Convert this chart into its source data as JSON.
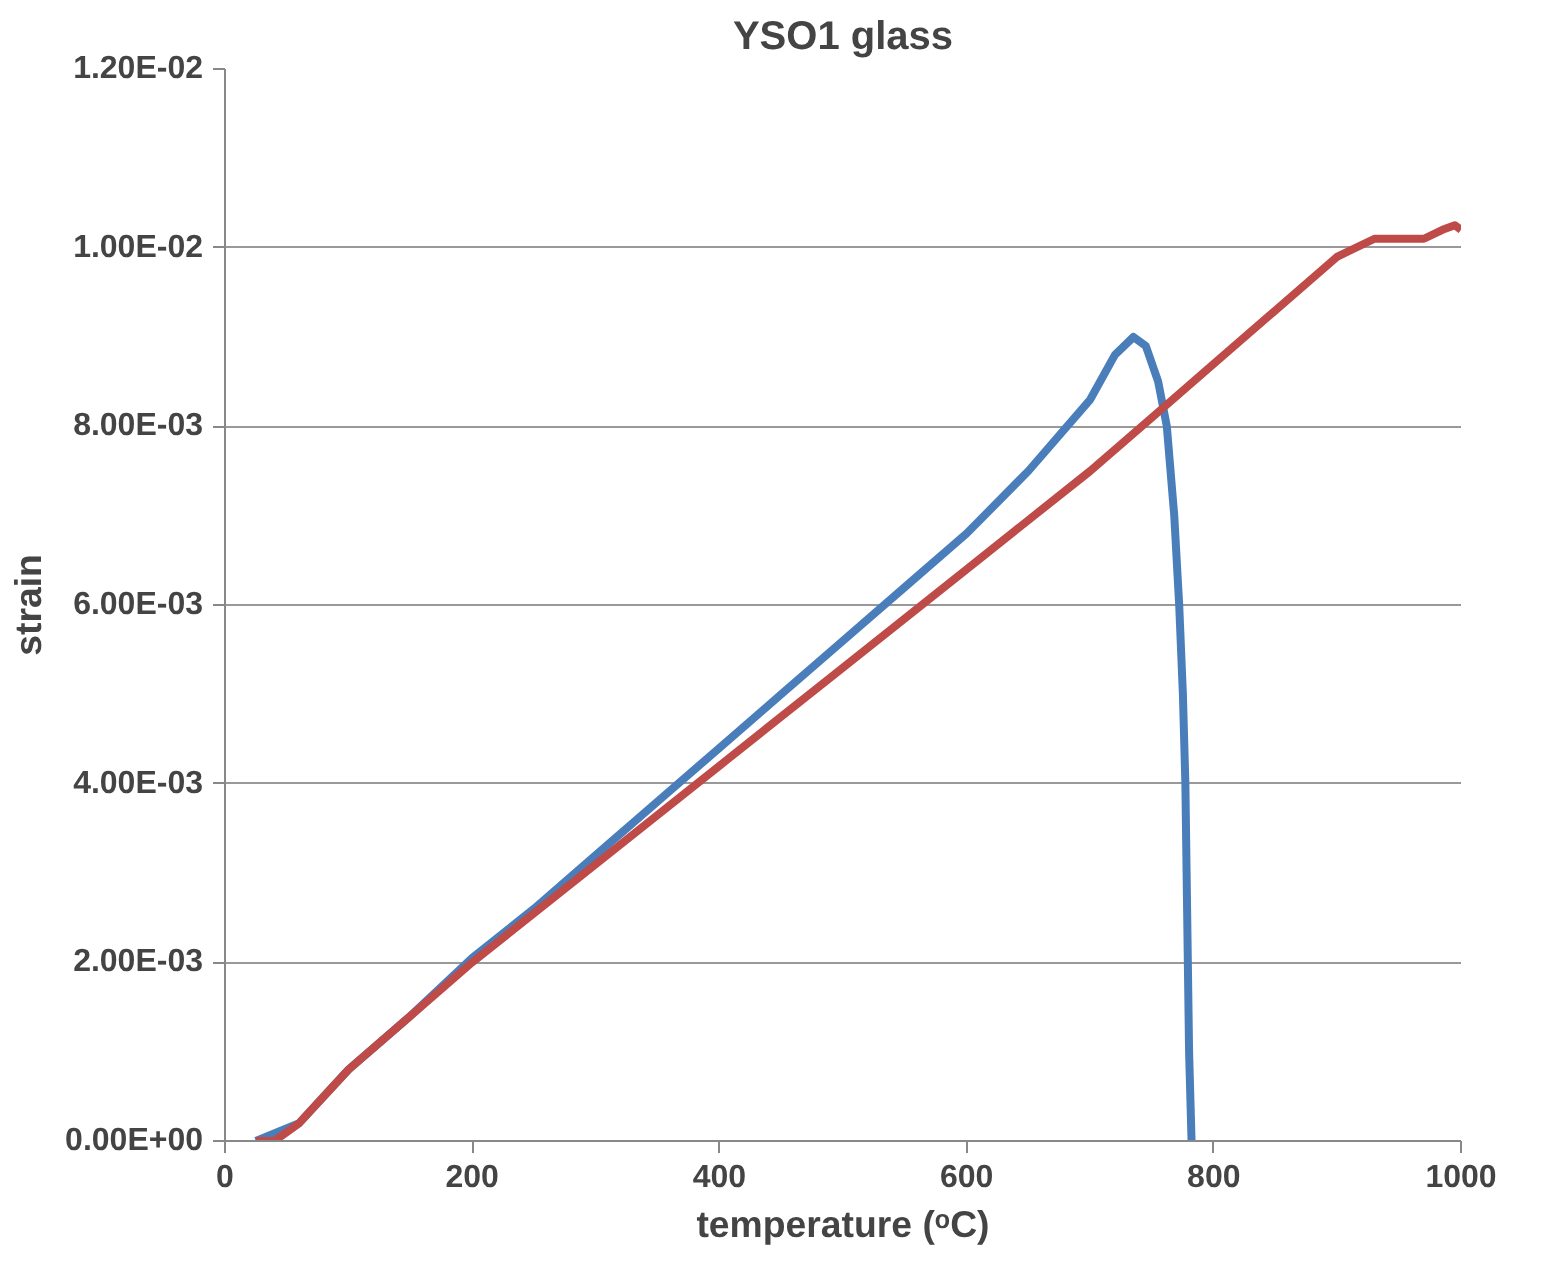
{
  "chart_data": {
    "type": "line",
    "title": "YSO1 glass",
    "xlabel": "temperature (ᵒC)",
    "ylabel": "strain",
    "xlim": [
      0,
      1000
    ],
    "xticks": [
      0,
      200,
      400,
      600,
      800,
      1000
    ],
    "ylim": [
      0,
      0.012
    ],
    "yticks": [
      {
        "value": 0,
        "label": "0.00E+00"
      },
      {
        "value": 0.002,
        "label": "2.00E-03"
      },
      {
        "value": 0.004,
        "label": "4.00E-03"
      },
      {
        "value": 0.006,
        "label": "6.00E-03"
      },
      {
        "value": 0.008,
        "label": "8.00E-03"
      },
      {
        "value": 0.01,
        "label": "1.00E-02"
      },
      {
        "value": 0.012,
        "label": "1.20E-02"
      }
    ],
    "grid": "y",
    "marker": "none",
    "line_style": "solid",
    "series": [
      {
        "color": "#4a7ebb",
        "x": [
          25,
          60,
          100,
          150,
          200,
          250,
          300,
          350,
          400,
          450,
          500,
          550,
          600,
          650,
          700,
          720,
          735,
          745,
          755,
          762,
          768,
          772,
          775,
          777,
          778,
          779,
          780,
          782
        ],
        "values": [
          0,
          0.0002,
          0.0008,
          0.0014,
          0.00205,
          0.0026,
          0.0032,
          0.0038,
          0.0044,
          0.005,
          0.0056,
          0.0062,
          0.0068,
          0.0075,
          0.0083,
          0.0088,
          0.009,
          0.0089,
          0.0085,
          0.008,
          0.007,
          0.006,
          0.005,
          0.004,
          0.003,
          0.002,
          0.001,
          0
        ]
      },
      {
        "color": "#be4b48",
        "x": [
          25,
          40,
          60,
          80,
          100,
          150,
          200,
          300,
          400,
          500,
          600,
          700,
          750,
          800,
          850,
          900,
          930,
          950,
          970,
          985,
          995,
          1000
        ],
        "values": [
          0,
          0,
          0.0002,
          0.0005,
          0.0008,
          0.0014,
          0.002,
          0.0031,
          0.0042,
          0.0053,
          0.0064,
          0.0075,
          0.0081,
          0.0087,
          0.0093,
          0.0099,
          0.0101,
          0.0101,
          0.0101,
          0.0102,
          0.01025,
          0.0102
        ]
      }
    ]
  }
}
